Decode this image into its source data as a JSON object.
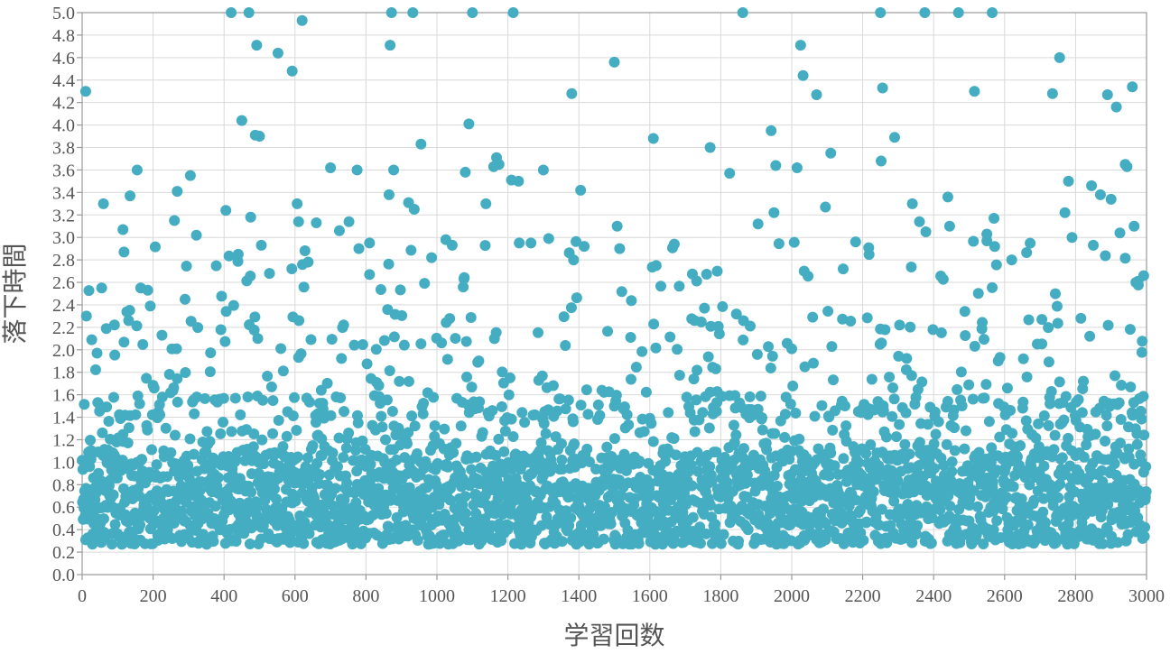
{
  "chart_data": {
    "type": "scatter",
    "xlabel": "学習回数",
    "ylabel": "落下時間",
    "xlim": [
      0,
      3000
    ],
    "ylim": [
      0.0,
      5.0
    ],
    "xticks": [
      "0",
      "200",
      "400",
      "600",
      "800",
      "1000",
      "1200",
      "1400",
      "1600",
      "1800",
      "2000",
      "2200",
      "2400",
      "2600",
      "2800",
      "3000"
    ],
    "yticks": [
      "0.0",
      "0.2",
      "0.4",
      "0.6",
      "0.8",
      "1.0",
      "1.2",
      "1.4",
      "1.6",
      "1.8",
      "2.0",
      "2.2",
      "2.4",
      "2.6",
      "2.8",
      "3.0",
      "3.2",
      "3.4",
      "3.6",
      "3.8",
      "4.0",
      "4.2",
      "4.4",
      "4.6",
      "4.8",
      "5.0"
    ],
    "grid": true,
    "legend": "none",
    "marker_color": "#45adc2",
    "points_note": "3000 trials, one point per learning episode; outlier values listed explicitly, bulk distribution concentrated between 0.25 and 1.6 with a sparse band up to ~3.0",
    "series": [
      {
        "values": [
          [
            10,
            4.3
          ],
          [
            12,
            2.3
          ],
          [
            60,
            3.3
          ],
          [
            55,
            2.55
          ],
          [
            115,
            3.07
          ],
          [
            118,
            2.87
          ],
          [
            135,
            3.37
          ],
          [
            155,
            3.6
          ],
          [
            165,
            2.55
          ],
          [
            185,
            2.53
          ],
          [
            260,
            3.15
          ],
          [
            268,
            3.41
          ],
          [
            290,
            2.45
          ],
          [
            305,
            3.55
          ],
          [
            322,
            3.02
          ],
          [
            405,
            3.24
          ],
          [
            420,
            5.0
          ],
          [
            440,
            2.85
          ],
          [
            450,
            4.04
          ],
          [
            470,
            5.0
          ],
          [
            475,
            3.18
          ],
          [
            488,
            3.91
          ],
          [
            492,
            4.71
          ],
          [
            500,
            3.9
          ],
          [
            505,
            2.93
          ],
          [
            528,
            2.68
          ],
          [
            552,
            4.64
          ],
          [
            592,
            4.48
          ],
          [
            606,
            3.3
          ],
          [
            610,
            3.14
          ],
          [
            620,
            4.93
          ],
          [
            660,
            3.13
          ],
          [
            700,
            3.62
          ],
          [
            725,
            3.06
          ],
          [
            752,
            3.14
          ],
          [
            775,
            3.6
          ],
          [
            780,
            2.9
          ],
          [
            810,
            2.67
          ],
          [
            865,
            3.38
          ],
          [
            868,
            4.71
          ],
          [
            872,
            5.0
          ],
          [
            878,
            3.6
          ],
          [
            920,
            3.31
          ],
          [
            932,
            5.0
          ],
          [
            936,
            3.25
          ],
          [
            955,
            3.83
          ],
          [
            985,
            2.82
          ],
          [
            1025,
            2.98
          ],
          [
            1080,
            3.58
          ],
          [
            1090,
            4.01
          ],
          [
            1100,
            5.0
          ],
          [
            1138,
            3.3
          ],
          [
            1160,
            3.63
          ],
          [
            1168,
            3.71
          ],
          [
            1175,
            3.65
          ],
          [
            1210,
            3.51
          ],
          [
            1215,
            5.0
          ],
          [
            1230,
            3.5
          ],
          [
            1232,
            2.95
          ],
          [
            1265,
            2.95
          ],
          [
            1300,
            3.6
          ],
          [
            1380,
            4.28
          ],
          [
            1385,
            2.8
          ],
          [
            1405,
            3.42
          ],
          [
            1415,
            2.92
          ],
          [
            1500,
            4.56
          ],
          [
            1508,
            3.1
          ],
          [
            1515,
            2.9
          ],
          [
            1610,
            3.88
          ],
          [
            1618,
            2.75
          ],
          [
            1770,
            3.8
          ],
          [
            1790,
            2.7
          ],
          [
            1825,
            3.57
          ],
          [
            1862,
            5.0
          ],
          [
            1905,
            3.12
          ],
          [
            1942,
            3.95
          ],
          [
            1950,
            3.22
          ],
          [
            1955,
            3.64
          ],
          [
            2015,
            3.62
          ],
          [
            2025,
            4.71
          ],
          [
            2032,
            4.44
          ],
          [
            2035,
            2.7
          ],
          [
            2070,
            4.27
          ],
          [
            2095,
            3.27
          ],
          [
            2110,
            3.75
          ],
          [
            2180,
            2.96
          ],
          [
            2250,
            5.0
          ],
          [
            2252,
            3.68
          ],
          [
            2256,
            4.33
          ],
          [
            2290,
            3.89
          ],
          [
            2340,
            3.3
          ],
          [
            2360,
            3.14
          ],
          [
            2375,
            5.0
          ],
          [
            2378,
            3.05
          ],
          [
            2440,
            3.36
          ],
          [
            2445,
            3.1
          ],
          [
            2470,
            5.0
          ],
          [
            2515,
            4.3
          ],
          [
            2550,
            3.03
          ],
          [
            2565,
            5.0
          ],
          [
            2570,
            3.17
          ],
          [
            2620,
            2.8
          ],
          [
            2705,
            2.27
          ],
          [
            2735,
            4.28
          ],
          [
            2755,
            4.6
          ],
          [
            2770,
            3.22
          ],
          [
            2780,
            3.5
          ],
          [
            2790,
            3.0
          ],
          [
            2845,
            3.46
          ],
          [
            2850,
            2.93
          ],
          [
            2870,
            3.38
          ],
          [
            2890,
            4.27
          ],
          [
            2900,
            3.34
          ],
          [
            2915,
            4.16
          ],
          [
            2925,
            3.04
          ],
          [
            2940,
            3.65
          ],
          [
            2945,
            3.63
          ],
          [
            2960,
            4.34
          ],
          [
            2965,
            3.1
          ],
          [
            2992,
            2.66
          ]
        ]
      }
    ]
  }
}
